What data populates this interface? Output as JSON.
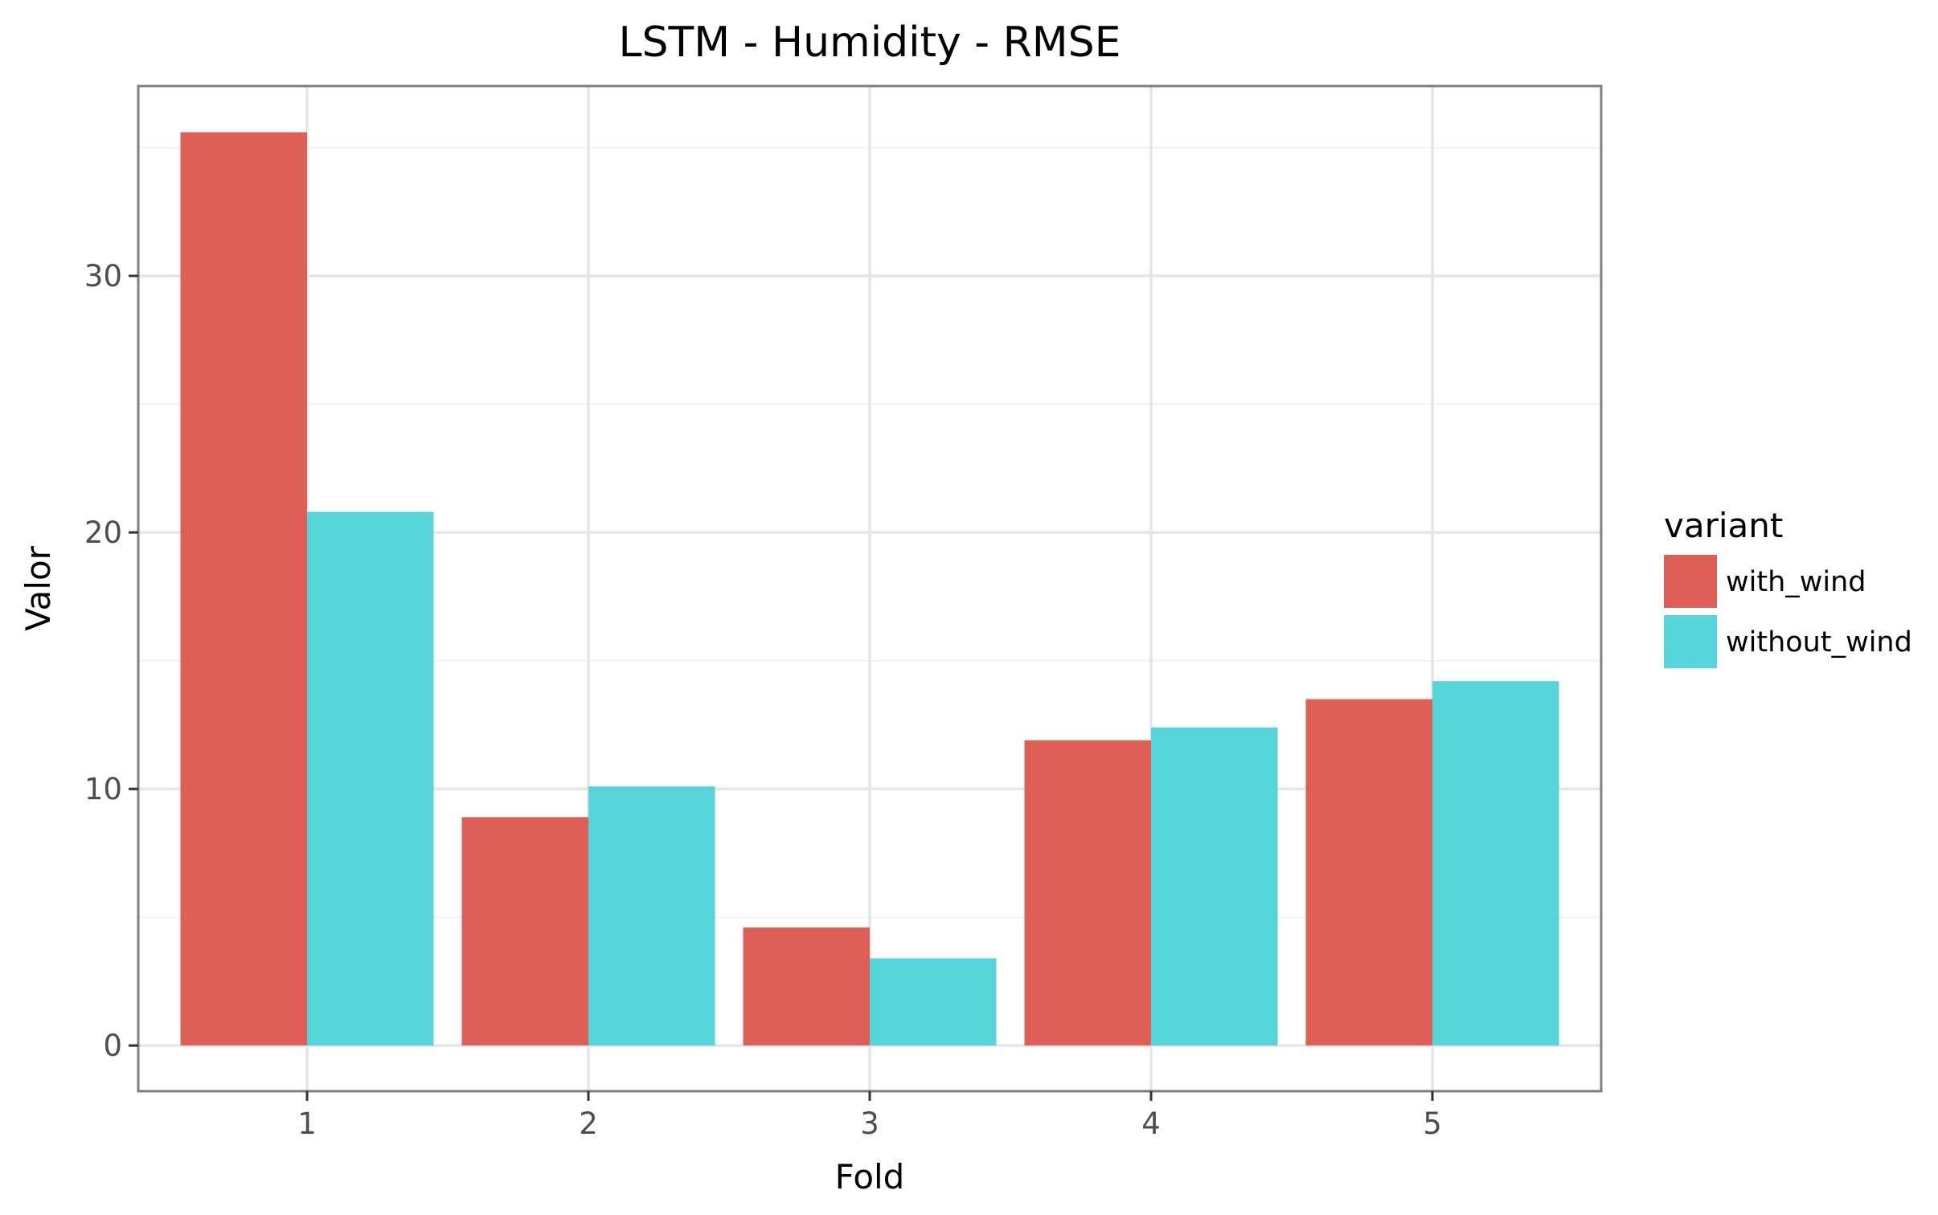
{
  "chart_data": {
    "type": "bar",
    "title": "LSTM - Humidity - RMSE",
    "xlabel": "Fold",
    "ylabel": "Valor",
    "categories": [
      "1",
      "2",
      "3",
      "4",
      "5"
    ],
    "series": [
      {
        "name": "with_wind",
        "color": "#dd5f56",
        "values": [
          35.6,
          8.9,
          4.6,
          11.9,
          13.5
        ]
      },
      {
        "name": "without_wind",
        "color": "#57d3da",
        "values": [
          20.8,
          10.1,
          3.4,
          12.4,
          14.2
        ]
      }
    ],
    "ylim": [
      -1.78,
      37.4
    ],
    "yticks": [
      0,
      10,
      20,
      30
    ],
    "ytick_labels": [
      "0",
      "10",
      "20",
      "30"
    ],
    "grid": true,
    "legend": {
      "title": "variant",
      "placement": "right"
    }
  }
}
